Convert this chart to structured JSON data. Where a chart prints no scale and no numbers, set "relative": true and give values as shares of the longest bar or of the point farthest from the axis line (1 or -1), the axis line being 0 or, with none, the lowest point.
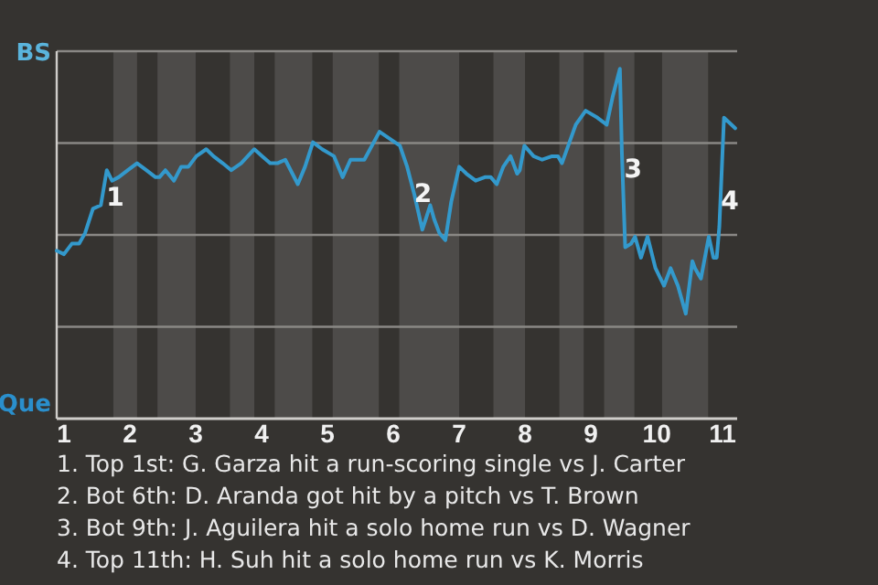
{
  "chart_data": {
    "type": "line",
    "relative": true,
    "x": [
      0.89,
      1.0,
      1.12,
      1.23,
      1.32,
      1.44,
      1.56,
      1.65,
      1.73,
      1.83,
      1.97,
      2.11,
      2.25,
      2.39,
      2.45,
      2.54,
      2.67,
      2.78,
      2.89,
      3.01,
      3.16,
      3.27,
      3.41,
      3.54,
      3.69,
      3.89,
      4.01,
      4.13,
      4.24,
      4.36,
      4.55,
      4.66,
      4.78,
      4.92,
      5.1,
      5.23,
      5.35,
      5.56,
      5.79,
      6.1,
      6.21,
      6.32,
      6.44,
      6.51,
      6.56,
      6.62,
      6.7,
      6.79,
      6.88,
      7.0,
      7.11,
      7.25,
      7.39,
      7.48,
      7.57,
      7.67,
      7.78,
      7.88,
      7.92,
      7.99,
      8.13,
      8.26,
      8.41,
      8.5,
      8.56,
      8.77,
      8.92,
      9.1,
      9.24,
      9.33,
      9.44,
      9.47,
      9.52,
      9.61,
      9.67,
      9.76,
      9.86,
      9.98,
      10.11,
      10.21,
      10.32,
      10.44,
      10.54,
      10.58,
      10.67,
      10.79,
      10.86,
      10.91,
      10.95,
      11.02,
      11.19
    ],
    "series": [
      {
        "color": "#3399cc",
        "values": [
          0.48,
          0.47,
          0.5,
          0.5,
          0.53,
          0.6,
          0.61,
          0.71,
          0.68,
          0.69,
          0.71,
          0.73,
          0.71,
          0.69,
          0.69,
          0.71,
          0.68,
          0.72,
          0.72,
          0.75,
          0.77,
          0.75,
          0.73,
          0.71,
          0.73,
          0.77,
          0.75,
          0.73,
          0.73,
          0.74,
          0.67,
          0.72,
          0.79,
          0.77,
          0.75,
          0.69,
          0.74,
          0.74,
          0.82,
          0.78,
          0.72,
          0.64,
          0.54,
          0.58,
          0.61,
          0.57,
          0.53,
          0.51,
          0.62,
          0.72,
          0.7,
          0.68,
          0.69,
          0.69,
          0.67,
          0.72,
          0.75,
          0.7,
          0.71,
          0.78,
          0.75,
          0.74,
          0.75,
          0.75,
          0.73,
          0.84,
          0.88,
          0.86,
          0.84,
          0.92,
          1,
          0.76,
          0.49,
          0.5,
          0.52,
          0.46,
          0.52,
          0.43,
          0.38,
          0.43,
          0.38,
          0.3,
          0.45,
          0.43,
          0.4,
          0.52,
          0.46,
          0.46,
          0.55,
          0.86,
          0.83
        ]
      }
    ],
    "xlim": [
      0.89,
      11.22
    ],
    "xticks": [
      1,
      2,
      3,
      4,
      5,
      6,
      7,
      8,
      9,
      10,
      11
    ],
    "grid": "y",
    "marker": "none",
    "line_style": "solid",
    "bands": [
      {
        "axis": "x",
        "from": 1.75,
        "to": 2.11,
        "color": "#4d4b49"
      },
      {
        "axis": "x",
        "from": 2.42,
        "to": 3.0,
        "color": "#4d4b49"
      },
      {
        "axis": "x",
        "from": 3.52,
        "to": 3.89,
        "color": "#4d4b49"
      },
      {
        "axis": "x",
        "from": 4.2,
        "to": 4.77,
        "color": "#4d4b49"
      },
      {
        "axis": "x",
        "from": 5.08,
        "to": 5.78,
        "color": "#4d4b49"
      },
      {
        "axis": "x",
        "from": 6.09,
        "to": 7.0,
        "color": "#4d4b49"
      },
      {
        "axis": "x",
        "from": 7.52,
        "to": 8.0,
        "color": "#4d4b49"
      },
      {
        "axis": "x",
        "from": 8.52,
        "to": 8.89,
        "color": "#4d4b49"
      },
      {
        "axis": "x",
        "from": 9.2,
        "to": 9.66,
        "color": "#4d4b49"
      },
      {
        "axis": "x",
        "from": 10.08,
        "to": 10.78,
        "color": "#4d4b49"
      }
    ],
    "annotations": [
      "BS",
      "Que",
      {
        "text": "1",
        "x": 1.78,
        "y": 0.63
      },
      {
        "text": "2",
        "x": 6.45,
        "y": 0.64
      },
      {
        "text": "3",
        "x": 9.64,
        "y": 0.71
      },
      {
        "text": "4",
        "x": 11.11,
        "y": 0.62
      },
      "1. Top 1st: G. Garza hit a run-scoring single vs J. Carter",
      "2. Bot 6th: D. Aranda got hit by a pitch vs T. Brown",
      "3. Bot 9th: J. Aguilera hit a solo home run vs D. Wagner",
      "4. Top 11th: H. Suh hit a solo home run vs K. Morris"
    ]
  }
}
